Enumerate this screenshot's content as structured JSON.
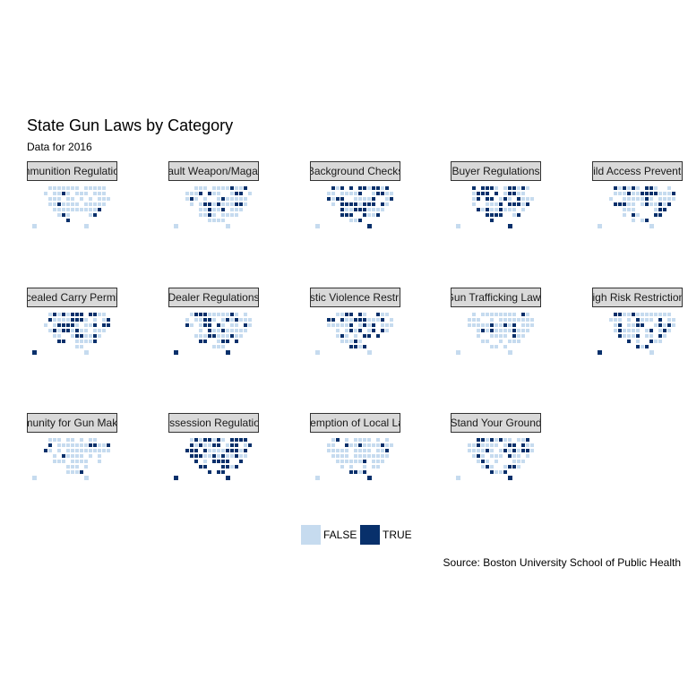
{
  "chart_data": {
    "type": "heatmap",
    "title": "State Gun Laws by Category",
    "subtitle": "Data for 2016",
    "caption": "Source: Boston University School of Public Health",
    "legend": {
      "placement": "bottom",
      "entries": [
        {
          "label": "FALSE",
          "color": "#c6dbef"
        },
        {
          "label": "TRUE",
          "color": "#08306b"
        }
      ]
    },
    "grid": false,
    "facets": [
      {
        "label": "Ammunition Regulations",
        "share_true": 0.12
      },
      {
        "label": "Assault Weapon/Magazine",
        "share_true": 0.14
      },
      {
        "label": "Background Checks",
        "share_true": 0.55
      },
      {
        "label": "Buyer Regulations",
        "share_true": 0.45
      },
      {
        "label": "Child Access Prevention",
        "share_true": 0.4
      },
      {
        "label": "Concealed Carry Permitting",
        "share_true": 0.5
      },
      {
        "label": "Dealer Regulations",
        "share_true": 0.35
      },
      {
        "label": "Domestic Violence Restrictions",
        "share_true": 0.5
      },
      {
        "label": "Gun Trafficking Laws",
        "share_true": 0.1
      },
      {
        "label": "High Risk Restrictions",
        "share_true": 0.4
      },
      {
        "label": "Immunity for Gun Makers",
        "share_true": 0.12
      },
      {
        "label": "Possession Regulations",
        "share_true": 0.65
      },
      {
        "label": "Preemption of Local Laws",
        "share_true": 0.08
      },
      {
        "label": "Stand Your Ground",
        "share_true": 0.3
      }
    ]
  }
}
